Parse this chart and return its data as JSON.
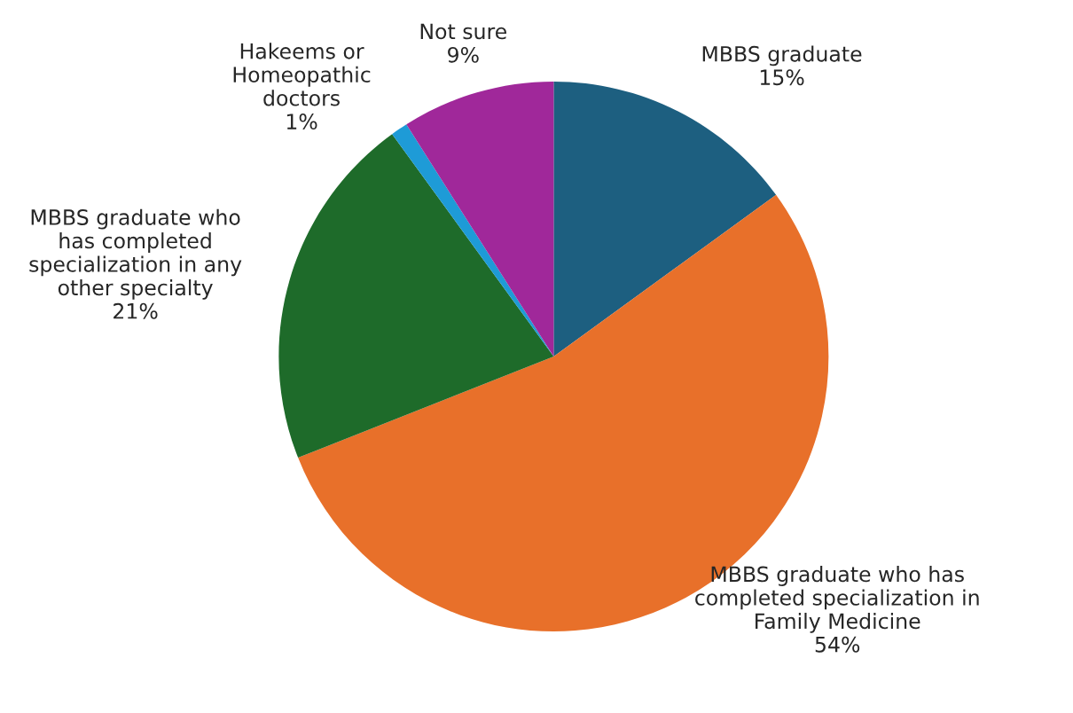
{
  "chart_data": {
    "type": "pie",
    "categories": [
      "MBBS graduate",
      "MBBS graduate who has\ncompleted specialization in\nFamily Medicine",
      "MBBS graduate who\nhas completed\nspecialization in any\nother specialty",
      "Hakeems or\nHomeopathic\ndoctors",
      "Not sure"
    ],
    "values": [
      15,
      54,
      21,
      1,
      9
    ],
    "colors": [
      "#1d5f80",
      "#e8702a",
      "#1e6b2a",
      "#1e9bd7",
      "#a0289a"
    ],
    "value_labels": [
      "15%",
      "54%",
      "21%",
      "1%",
      "9%"
    ],
    "legend": false
  }
}
